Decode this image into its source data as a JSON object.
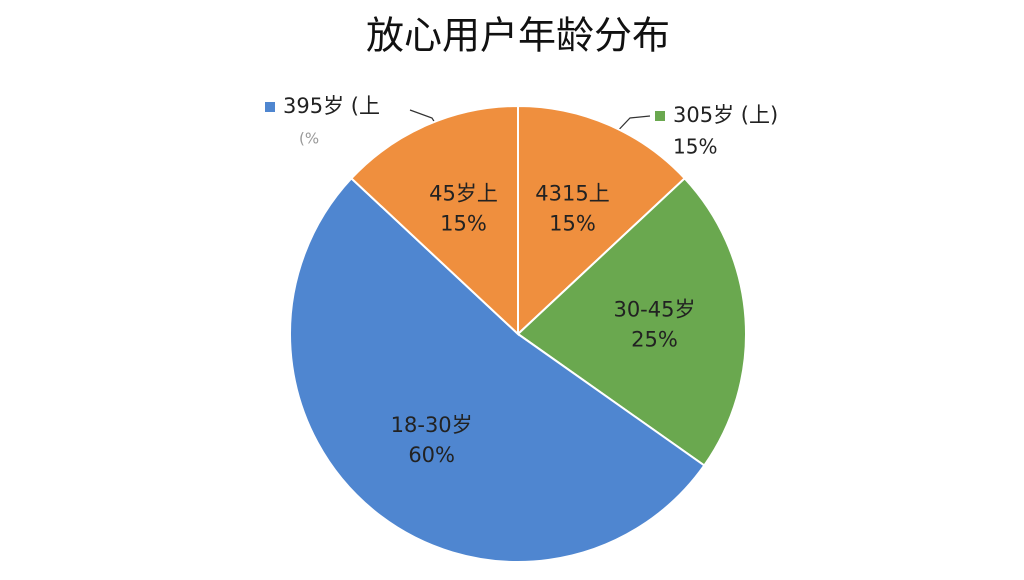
{
  "chart_data": {
    "type": "pie",
    "title": "放心用户年龄分布",
    "categories": [
      "4315上",
      "30-45岁",
      "18-30岁",
      "45岁上"
    ],
    "values": [
      15,
      25,
      60,
      15
    ],
    "value_labels": [
      "15%",
      "25%",
      "60%",
      "15%"
    ],
    "colors": [
      "#ef8f3e",
      "#6aa84f",
      "#4f86d0",
      "#ef8f3e"
    ],
    "annotations": [
      {
        "text": "395岁 (上",
        "subtext": "(%",
        "color": "#4f86d0"
      },
      {
        "text": "305岁 (上)",
        "subtext": "15%",
        "color": "#6aa84f"
      }
    ]
  }
}
